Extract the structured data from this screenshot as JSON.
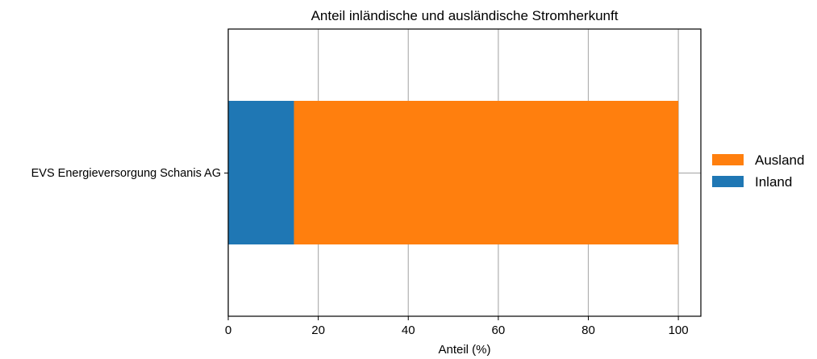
{
  "chart_data": {
    "type": "bar",
    "orientation": "horizontal",
    "stacked": true,
    "title": "Anteil inländische und ausländische Stromherkunft",
    "xlabel": "Anteil (%)",
    "ylabel": "",
    "categories": [
      "EVS Energieversorgung Schanis AG"
    ],
    "series": [
      {
        "name": "Inland",
        "values": [
          14.6
        ],
        "color": "#1f77b4"
      },
      {
        "name": "Ausland",
        "values": [
          85.4
        ],
        "color": "#ff7f0e"
      }
    ],
    "xlim": [
      0,
      105
    ],
    "xticks": [
      0,
      20,
      40,
      60,
      80,
      100
    ],
    "grid": true,
    "legend": {
      "placement": "right",
      "order": [
        "Ausland",
        "Inland"
      ]
    }
  }
}
